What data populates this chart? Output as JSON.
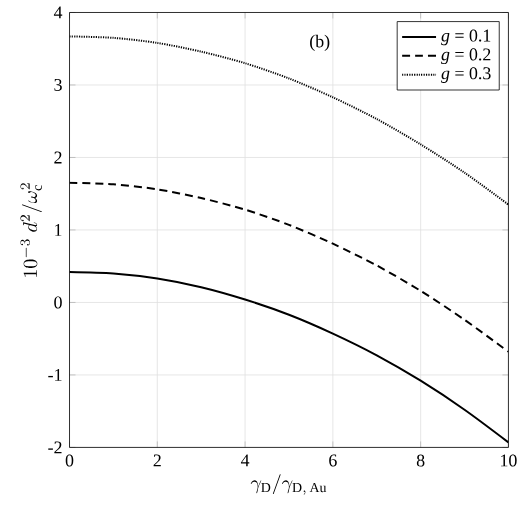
{
  "chart_data": {
    "type": "line",
    "xlabel": "\\gamma_{\\mathrm{D}}/\\gamma_{\\mathrm{D,\\,Au}}",
    "ylabel": "10^{-3}\\ d^{2}/\\omega_{\\mathrm{c}}^{2}",
    "annotations": [
      "(b)"
    ],
    "x": [
      0,
      1,
      2,
      3,
      4,
      5,
      6,
      7,
      8,
      9,
      10
    ],
    "series": [
      {
        "name": "*g* = 0.1",
        "color": "#000000",
        "line_style": "solid",
        "values": [
          0.42,
          0.4,
          0.33,
          0.21,
          0.04,
          -0.17,
          -0.43,
          -0.73,
          -1.08,
          -1.48,
          -1.93
        ]
      },
      {
        "name": "*g* = 0.2",
        "color": "#000000",
        "line_style": "dashed",
        "values": [
          1.65,
          1.63,
          1.56,
          1.44,
          1.28,
          1.07,
          0.81,
          0.51,
          0.16,
          -0.24,
          -0.68
        ]
      },
      {
        "name": "*g* = 0.3",
        "color": "#000000",
        "line_style": "dotted",
        "values": [
          3.67,
          3.65,
          3.58,
          3.46,
          3.3,
          3.09,
          2.83,
          2.53,
          2.18,
          1.79,
          1.35
        ]
      }
    ],
    "xlim": [
      0,
      10
    ],
    "ylim": [
      -2,
      4
    ],
    "xticks": [
      0,
      2,
      4,
      6,
      8,
      10
    ],
    "yticks": [
      -2,
      -1,
      0,
      1,
      2,
      3,
      4
    ],
    "grid": true,
    "legend": "top right",
    "marker": "none"
  }
}
